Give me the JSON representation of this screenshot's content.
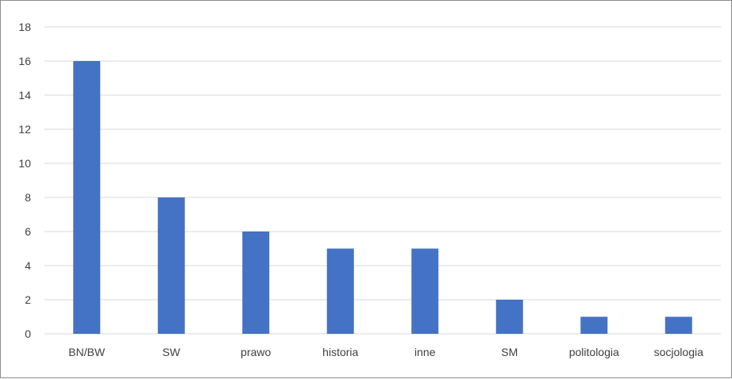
{
  "chart_data": {
    "type": "bar",
    "title": "",
    "xlabel": "",
    "ylabel": "",
    "categories": [
      "BN/BW",
      "SW",
      "prawo",
      "historia",
      "inne",
      "SM",
      "politologia",
      "socjologia"
    ],
    "values": [
      16,
      8,
      6,
      5,
      5,
      2,
      1,
      1
    ],
    "ylim": [
      0,
      18
    ],
    "yticks": [
      "0",
      "2",
      "4",
      "6",
      "8",
      "10",
      "12",
      "14",
      "16",
      "18"
    ],
    "grid": true,
    "legend": "none",
    "bar_color": "#4472c4"
  }
}
